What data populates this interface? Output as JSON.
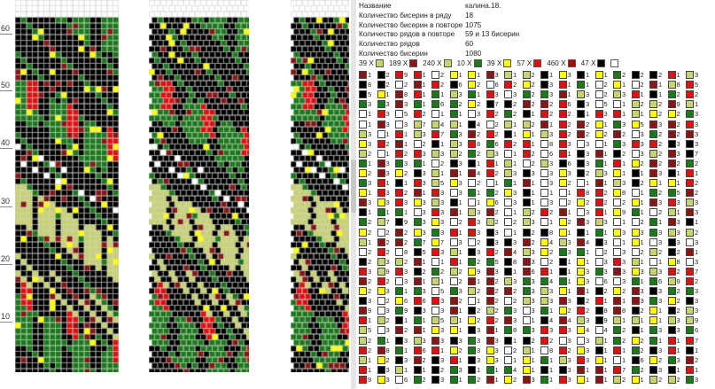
{
  "ruler": {
    "labels": [
      "60",
      "50",
      "40",
      "30",
      "20",
      "10"
    ]
  },
  "info": {
    "rows": [
      {
        "key": "Название",
        "value": "калина.18."
      },
      {
        "key": "Количество бисерин в ряду",
        "value": "18"
      },
      {
        "key": "Количество бисерин в повторе",
        "value": "1075"
      },
      {
        "key": "Количество рядов в повторе",
        "value": "59 и 13 бисерин"
      },
      {
        "key": "Количество рядов",
        "value": "60"
      },
      {
        "key": "Количество бисерин",
        "value": "1080"
      }
    ]
  },
  "legend": [
    {
      "count": "39 X",
      "color": "#c8d26e"
    },
    {
      "count": "189 X",
      "color": "#8b1414"
    },
    {
      "count": "240 X",
      "color": "#c8d26e"
    },
    {
      "count": "10 X",
      "color": "#1a7a1a"
    },
    {
      "count": "39 X",
      "color": "#ffff00"
    },
    {
      "count": "57 X",
      "color": "#e01010"
    },
    {
      "count": "460 X",
      "color": "#b00000"
    },
    {
      "count": "47 X",
      "color": "#000000"
    },
    {
      "count": "",
      "color": "#ffffff"
    }
  ],
  "palette": {
    "black": "#000000",
    "dark_green": "#1a7a1a",
    "light_green": "#c8d26e",
    "red": "#e01010",
    "dark_red": "#8b1414",
    "yellow": "#ffff00",
    "white": "#ffffff",
    "grid": "#cfcfcf"
  }
}
